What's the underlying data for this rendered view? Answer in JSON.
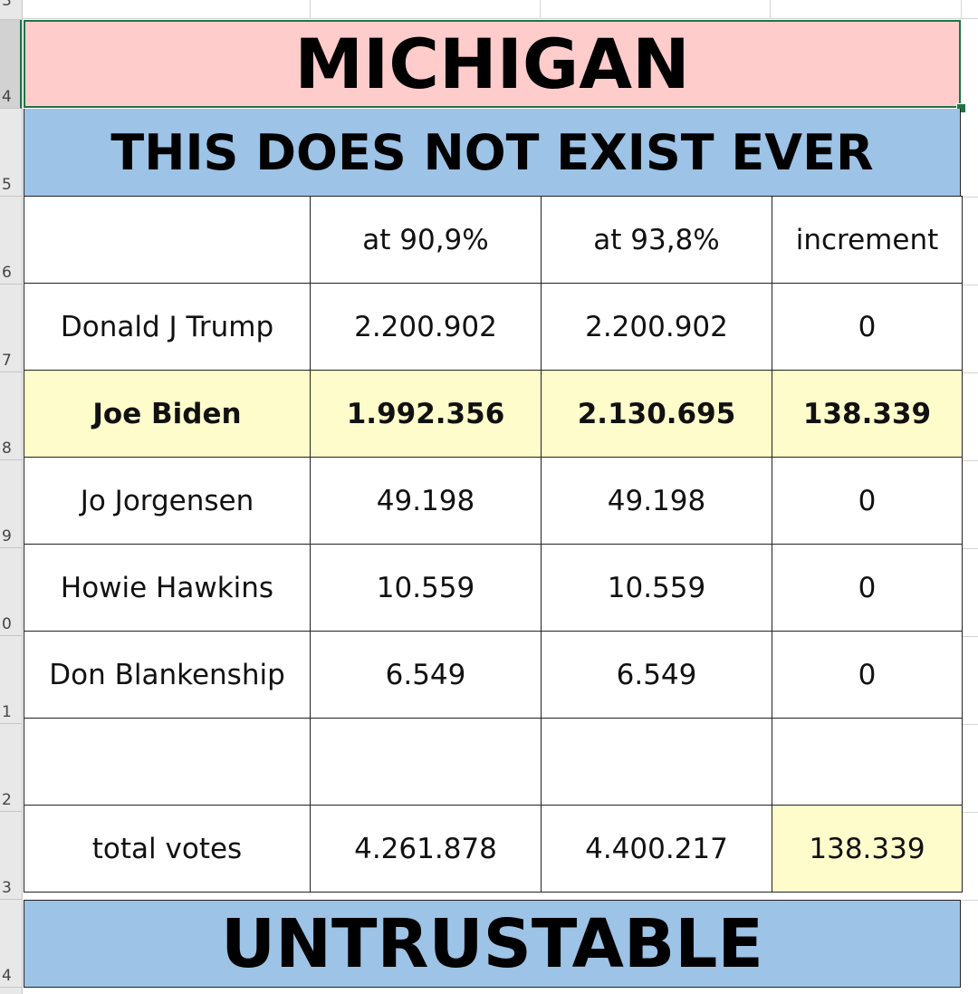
{
  "row_headers": [
    "3",
    "4",
    "5",
    "6",
    "7",
    "8",
    "9",
    "0",
    "1",
    "2",
    "3",
    "4"
  ],
  "title": "MICHIGAN",
  "subtitle": "THIS DOES NOT EXIST EVER",
  "footer": "UNTRUSTABLE",
  "table": {
    "headers": [
      "",
      "at 90,9%",
      "at 93,8%",
      "increment"
    ],
    "rows": [
      {
        "name": "Donald J Trump",
        "v1": "2.200.902",
        "v2": "2.200.902",
        "inc": "0"
      },
      {
        "name": "Joe Biden",
        "v1": "1.992.356",
        "v2": "2.130.695",
        "inc": "138.339"
      },
      {
        "name": "Jo Jorgensen",
        "v1": "49.198",
        "v2": "49.198",
        "inc": "0"
      },
      {
        "name": "Howie Hawkins",
        "v1": "10.559",
        "v2": "10.559",
        "inc": "0"
      },
      {
        "name": "Don Blankenship",
        "v1": "6.549",
        "v2": "6.549",
        "inc": "0"
      },
      {
        "name": "",
        "v1": "",
        "v2": "",
        "inc": ""
      },
      {
        "name": "total votes",
        "v1": "4.261.878",
        "v2": "4.400.217",
        "inc": "138.339"
      }
    ]
  },
  "colors": {
    "title_bg": "#ffcccc",
    "band_bg": "#9dc3e6",
    "highlight_bg": "#fffccc",
    "selection": "#217346"
  }
}
